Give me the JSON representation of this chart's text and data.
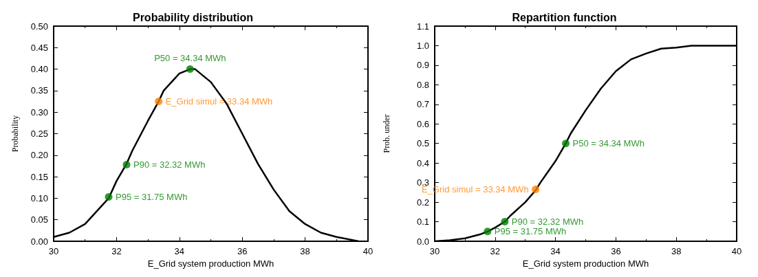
{
  "chart_data": [
    {
      "type": "line",
      "title": "Probability distribution",
      "xlabel": "E_Grid system production MWh",
      "ylabel": "Probability",
      "xlim": [
        30,
        40
      ],
      "xticks": [
        30,
        32,
        34,
        36,
        38,
        40
      ],
      "ylim": [
        0,
        0.5
      ],
      "yticks": [
        {
          "value": 0,
          "label": "0.00"
        },
        {
          "value": 0.05,
          "label": "0.05"
        },
        {
          "value": 0.1,
          "label": "0.10"
        },
        {
          "value": 0.15,
          "label": "0.15"
        },
        {
          "value": 0.2,
          "label": "0.20"
        },
        {
          "value": 0.25,
          "label": "0.25"
        },
        {
          "value": 0.3,
          "label": "0.30"
        },
        {
          "value": 0.35,
          "label": "0.35"
        },
        {
          "value": 0.4,
          "label": "0.40"
        },
        {
          "value": 0.45,
          "label": "0.45"
        },
        {
          "value": 0.5,
          "label": "0.50"
        }
      ],
      "grid": false,
      "annotations": [
        {
          "text": "P50 = 34.34 MWh",
          "x": 34.34,
          "y": 0.4
        },
        {
          "text": "E_Grid simul = 33.34 MWh",
          "x": 33.34,
          "y": 0.325
        },
        {
          "text": "P90 = 32.32 MWh",
          "x": 32.32,
          "y": 0.178
        },
        {
          "text": "P95 = 31.75 MWh",
          "x": 31.75,
          "y": 0.103
        }
      ],
      "series": [
        {
          "color": "#000000",
          "marker": "none",
          "x": [
            30,
            30.5,
            31,
            31.5,
            31.75,
            32,
            32.32,
            32.5,
            33,
            33.34,
            33.5,
            34,
            34.34,
            34.5,
            35,
            35.5,
            36,
            36.5,
            37,
            37.5,
            38,
            38.5,
            39,
            39.5,
            39.7
          ],
          "values": [
            0.01,
            0.02,
            0.04,
            0.08,
            0.1,
            0.14,
            0.18,
            0.21,
            0.28,
            0.325,
            0.35,
            0.39,
            0.4,
            0.4,
            0.37,
            0.32,
            0.25,
            0.18,
            0.12,
            0.07,
            0.04,
            0.02,
            0.01,
            0.003,
            0
          ]
        },
        {
          "type": "scatter",
          "marker": "circle",
          "x": [
            34.34,
            33.34,
            32.32,
            31.75
          ],
          "values": [
            0.4,
            0.325,
            0.178,
            0.103
          ],
          "colors": [
            "#008000",
            "#ff8000",
            "#008000",
            "#008000"
          ]
        }
      ]
    },
    {
      "type": "line",
      "title": "Repartition function",
      "xlabel": "E_Grid system production MWh",
      "ylabel": "Prob. under",
      "xlim": [
        30,
        40
      ],
      "xticks": [
        30,
        32,
        34,
        36,
        38,
        40
      ],
      "ylim": [
        0,
        1.1
      ],
      "yticks": [
        {
          "value": 0,
          "label": "0.0"
        },
        {
          "value": 0.1,
          "label": "0.1"
        },
        {
          "value": 0.2,
          "label": "0.2"
        },
        {
          "value": 0.3,
          "label": "0.3"
        },
        {
          "value": 0.4,
          "label": "0.4"
        },
        {
          "value": 0.5,
          "label": "0.5"
        },
        {
          "value": 0.6,
          "label": "0.6"
        },
        {
          "value": 0.7,
          "label": "0.7"
        },
        {
          "value": 0.8,
          "label": "0.8"
        },
        {
          "value": 0.9,
          "label": "0.9"
        },
        {
          "value": 1,
          "label": "1.0"
        },
        {
          "value": 1.1,
          "label": "1.1"
        }
      ],
      "grid": false,
      "annotations": [
        {
          "text": "P50 = 34.34 MWh",
          "x": 34.34,
          "y": 0.5
        },
        {
          "text": "E_Grid simul = 33.34 MWh",
          "x": 33.34,
          "y": 0.265
        },
        {
          "text": "P90 = 32.32 MWh",
          "x": 32.32,
          "y": 0.1
        },
        {
          "text": "P95 = 31.75 MWh",
          "x": 31.75,
          "y": 0.05
        }
      ],
      "series": [
        {
          "color": "#000000",
          "marker": "none",
          "x": [
            30,
            30.5,
            31,
            31.5,
            31.75,
            32,
            32.32,
            32.5,
            33,
            33.34,
            33.5,
            34,
            34.34,
            34.5,
            35,
            35.5,
            36,
            36.5,
            37,
            37.5,
            38,
            38.5,
            39,
            40
          ],
          "values": [
            0,
            0.005,
            0.015,
            0.035,
            0.05,
            0.07,
            0.1,
            0.13,
            0.2,
            0.26,
            0.3,
            0.41,
            0.5,
            0.55,
            0.67,
            0.78,
            0.87,
            0.93,
            0.96,
            0.985,
            0.99,
            1,
            1,
            1
          ]
        },
        {
          "type": "scatter",
          "marker": "circle",
          "x": [
            34.34,
            33.34,
            32.32,
            31.75
          ],
          "values": [
            0.5,
            0.265,
            0.1,
            0.05
          ],
          "colors": [
            "#008000",
            "#ff8000",
            "#008000",
            "#008000"
          ]
        }
      ]
    }
  ]
}
